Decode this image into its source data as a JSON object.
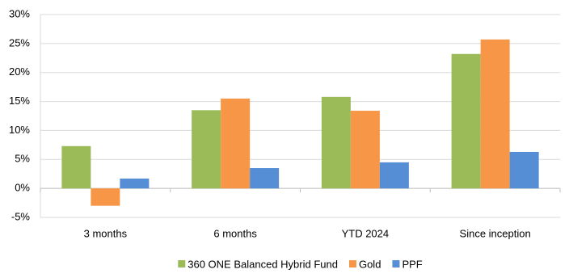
{
  "chart_data": {
    "type": "bar",
    "categories": [
      "3 months",
      "6 months",
      "YTD 2024",
      "Since inception"
    ],
    "series": [
      {
        "name": "360 ONE Balanced Hybrid Fund",
        "color": "#9bbb59",
        "values": [
          7.3,
          13.5,
          15.8,
          23.2
        ]
      },
      {
        "name": "Gold",
        "color": "#f79646",
        "values": [
          -3.0,
          15.5,
          13.4,
          25.7
        ]
      },
      {
        "name": "PPF",
        "color": "#558ed5",
        "values": [
          1.7,
          3.5,
          4.5,
          6.3
        ]
      }
    ],
    "ylim": [
      -5,
      30
    ],
    "yticks": [
      {
        "value": -5,
        "label": "-5%"
      },
      {
        "value": 0,
        "label": "0%"
      },
      {
        "value": 5,
        "label": "5%"
      },
      {
        "value": 10,
        "label": "10%"
      },
      {
        "value": 15,
        "label": "15%"
      },
      {
        "value": 20,
        "label": "20%"
      },
      {
        "value": 25,
        "label": "25%"
      },
      {
        "value": 30,
        "label": "30%"
      }
    ],
    "grid": true,
    "legend": "bottom"
  }
}
